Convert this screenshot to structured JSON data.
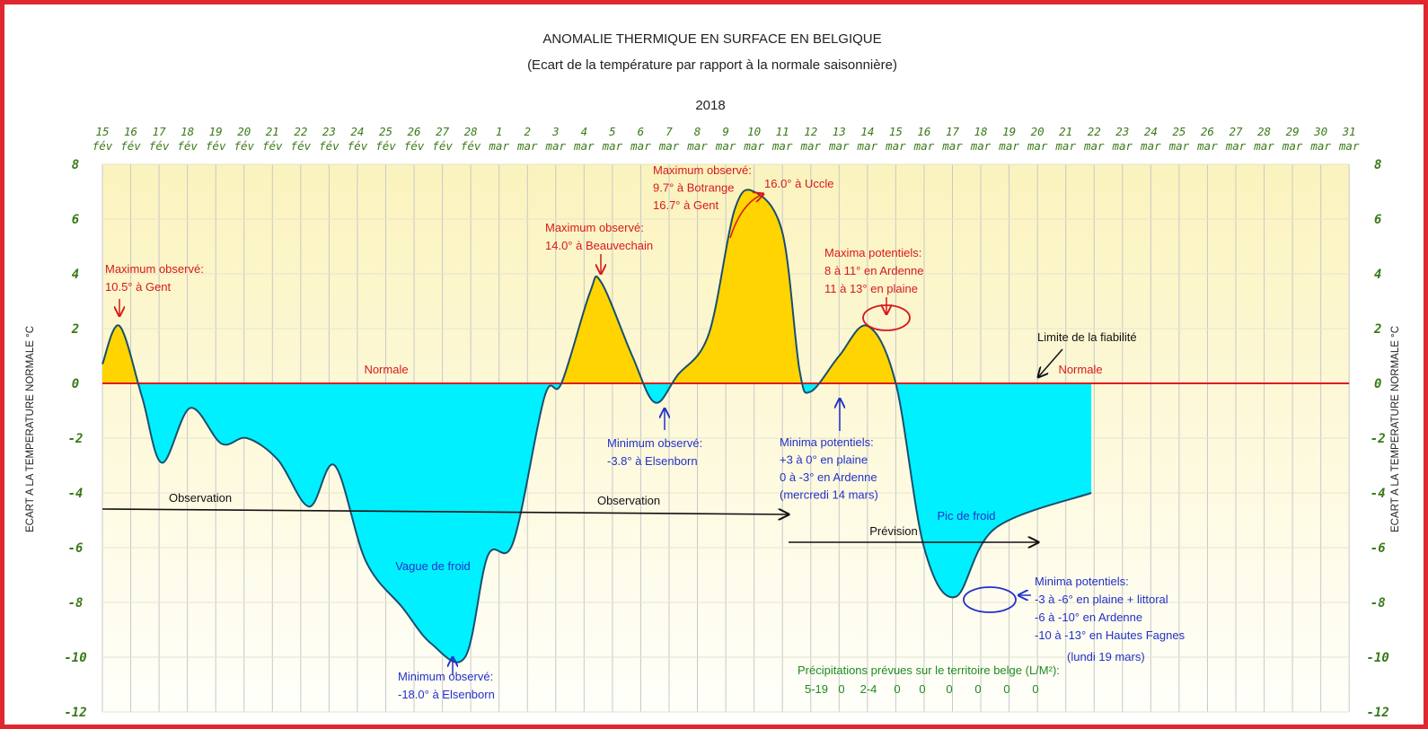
{
  "chart_data": {
    "type": "area",
    "title": "ANOMALIE THERMIQUE EN SURFACE EN BELGIQUE",
    "subtitle": "(Ecart de la température par rapport à la normale saisonnière)",
    "year": "2018",
    "ylabel": "ECART A LA TEMPERATURE NORMALE  °C",
    "ylim": [
      -12,
      8
    ],
    "yticks": [
      8,
      6,
      4,
      2,
      0,
      -2,
      -4,
      -6,
      -8,
      -10,
      -12
    ],
    "categories": [
      [
        "15",
        "fév"
      ],
      [
        "16",
        "fév"
      ],
      [
        "17",
        "fév"
      ],
      [
        "18",
        "fév"
      ],
      [
        "19",
        "fév"
      ],
      [
        "20",
        "fév"
      ],
      [
        "21",
        "fév"
      ],
      [
        "22",
        "fév"
      ],
      [
        "23",
        "fév"
      ],
      [
        "24",
        "fév"
      ],
      [
        "25",
        "fév"
      ],
      [
        "26",
        "fév"
      ],
      [
        "27",
        "fév"
      ],
      [
        "28",
        "fév"
      ],
      [
        "1",
        "mar"
      ],
      [
        "2",
        "mar"
      ],
      [
        "3",
        "mar"
      ],
      [
        "4",
        "mar"
      ],
      [
        "5",
        "mar"
      ],
      [
        "6",
        "mar"
      ],
      [
        "7",
        "mar"
      ],
      [
        "8",
        "mar"
      ],
      [
        "9",
        "mar"
      ],
      [
        "10",
        "mar"
      ],
      [
        "11",
        "mar"
      ],
      [
        "12",
        "mar"
      ],
      [
        "13",
        "mar"
      ],
      [
        "14",
        "mar"
      ],
      [
        "15",
        "mar"
      ],
      [
        "16",
        "mar"
      ],
      [
        "17",
        "mar"
      ],
      [
        "18",
        "mar"
      ],
      [
        "19",
        "mar"
      ],
      [
        "20",
        "mar"
      ],
      [
        "21",
        "mar"
      ],
      [
        "22",
        "mar"
      ],
      [
        "23",
        "mar"
      ],
      [
        "24",
        "mar"
      ],
      [
        "25",
        "mar"
      ],
      [
        "26",
        "mar"
      ],
      [
        "27",
        "mar"
      ],
      [
        "28",
        "mar"
      ],
      [
        "29",
        "mar"
      ],
      [
        "30",
        "mar"
      ],
      [
        "31",
        "mar"
      ]
    ],
    "series": [
      {
        "values": [
          [
            0,
            0.7
          ],
          [
            0.6,
            2.1
          ],
          [
            1.4,
            -0.5
          ],
          [
            2.1,
            -2.9
          ],
          [
            3.1,
            -0.9
          ],
          [
            4.2,
            -2.2
          ],
          [
            5.1,
            -2.0
          ],
          [
            6.2,
            -2.8
          ],
          [
            7.3,
            -4.5
          ],
          [
            8.2,
            -3.0
          ],
          [
            9.3,
            -6.5
          ],
          [
            10.6,
            -8.2
          ],
          [
            11.6,
            -9.5
          ],
          [
            12.8,
            -10.0
          ],
          [
            13.6,
            -6.3
          ],
          [
            14.5,
            -5.8
          ],
          [
            15.6,
            -0.5
          ],
          [
            16.2,
            0.0
          ],
          [
            17.2,
            3.3
          ],
          [
            17.6,
            3.7
          ],
          [
            18.7,
            1.0
          ],
          [
            19.5,
            -0.7
          ],
          [
            20.3,
            0.3
          ],
          [
            21.4,
            1.8
          ],
          [
            22.3,
            6.3
          ],
          [
            23.0,
            7.0
          ],
          [
            24.0,
            5.5
          ],
          [
            24.6,
            0.5
          ],
          [
            25.0,
            -0.3
          ],
          [
            26.0,
            1.0
          ],
          [
            27.0,
            2.1
          ],
          [
            28.0,
            0.0
          ],
          [
            29.0,
            -6.0
          ],
          [
            30.1,
            -7.8
          ],
          [
            31.5,
            -5.3
          ],
          [
            34.9,
            -4.0
          ]
        ]
      }
    ],
    "normal_label": "Normale",
    "annotations": {
      "max_16fev": [
        "Maximum observé:",
        "10.5° à Gent"
      ],
      "max_6mar": [
        "Maximum observé:",
        "14.0° à Beauvechain"
      ],
      "max_11mar": [
        "Maximum observé:",
        "9.7° à Botrange",
        "16.7° à Gent"
      ],
      "max_11mar_uccle": "16.0° à Uccle",
      "maxima_potentiels": [
        "Maxima potentiels:",
        "8 à 11° en Ardenne",
        "11 à 13° en plaine"
      ],
      "limite": "Limite de la fiabilité",
      "min_28fev": [
        "Minimum observé:",
        "-18.0° à Elsenborn"
      ],
      "min_8mar": [
        "Minimum observé:",
        "-3.8° à Elsenborn"
      ],
      "minima_14mar": [
        "Minima potentiels:",
        "+3 à 0° en plaine",
        "0 à -3° en Ardenne",
        "(mercredi 14 mars)"
      ],
      "minima_19mar": [
        "Minima potentiels:",
        "-3 à -6° en plaine + littoral",
        "-6 à -10° en Ardenne",
        "-10 à -13° en Hautes Fagnes"
      ],
      "minima_19mar_date": "(lundi 19 mars)",
      "vague": "Vague de froid",
      "pic": "Pic de froid",
      "observation": "Observation",
      "prevision": "Prévision",
      "precip_label": "Précipitations prévues sur le territoire belge (L/M²):",
      "precip_values": [
        "5-19",
        "0",
        "2-4",
        "0",
        "0",
        "0",
        "0",
        "0",
        "0"
      ]
    },
    "colors": {
      "above": "#ffd400",
      "below": "#00f0ff",
      "curve": "#1a4f6e",
      "normal_line": "#e31a1c",
      "grid": "#c8c8c8",
      "red_text": "#d7191c",
      "blue_text": "#2231c8",
      "green_text": "#1f8a1f",
      "tick_text": "#3a7a18",
      "frame": "#e0262e"
    }
  }
}
